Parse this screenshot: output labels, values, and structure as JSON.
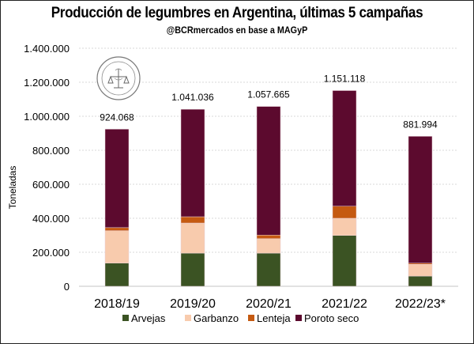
{
  "chart_data": {
    "type": "bar",
    "stacked": true,
    "title": "Producción de legumbres en Argentina, últimas 5 campañas",
    "subtitle": "@BCRmercados en base a MAGyP",
    "xlabel": "",
    "ylabel": "Toneladas",
    "ylim": [
      0,
      1400000
    ],
    "yticks": [
      0,
      200000,
      400000,
      600000,
      800000,
      1000000,
      1200000,
      1400000
    ],
    "ytick_labels": [
      "0",
      "200.000",
      "400.000",
      "600.000",
      "800.000",
      "1.000.000",
      "1.200.000",
      "1.400.000"
    ],
    "grid": true,
    "categories": [
      "2018/19",
      "2019/20",
      "2020/21",
      "2021/22",
      "2022/23*"
    ],
    "series": [
      {
        "name": "Arvejas",
        "color": "#3b5323",
        "values": [
          136000,
          195000,
          195000,
          299000,
          60000
        ]
      },
      {
        "name": "Garbanzo",
        "color": "#f8cbad",
        "values": [
          191000,
          177000,
          85000,
          101000,
          69000
        ]
      },
      {
        "name": "Lenteja",
        "color": "#c55a11",
        "values": [
          18000,
          37000,
          21000,
          71000,
          7000
        ]
      },
      {
        "name": "Poroto seco",
        "color": "#5c0a2e",
        "values": [
          579068,
          632036,
          756665,
          680118,
          745994
        ]
      }
    ],
    "totals": [
      924068,
      1041036,
      1057665,
      1151118,
      881994
    ],
    "total_labels": [
      "924.068",
      "1.041.036",
      "1.057.665",
      "1.151.118",
      "881.994"
    ],
    "legend_position": "bottom",
    "logo": "Bolsa de Comercio de Rosario seal"
  }
}
